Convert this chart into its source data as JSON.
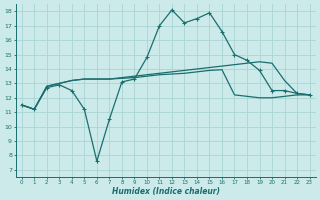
{
  "xlabel": "Humidex (Indice chaleur)",
  "xlim": [
    -0.5,
    23.5
  ],
  "ylim": [
    6.5,
    18.5
  ],
  "xticks": [
    0,
    1,
    2,
    3,
    4,
    5,
    6,
    7,
    8,
    9,
    10,
    11,
    12,
    13,
    14,
    15,
    16,
    17,
    18,
    19,
    20,
    21,
    22,
    23
  ],
  "yticks": [
    7,
    8,
    9,
    10,
    11,
    12,
    13,
    14,
    15,
    16,
    17,
    18
  ],
  "background_color": "#cdeaea",
  "grid_color": "#aad4d4",
  "line_color": "#1a6e6e",
  "line1_y": [
    11.5,
    11.2,
    12.7,
    12.9,
    12.5,
    11.2,
    7.6,
    10.5,
    13.1,
    13.3,
    14.8,
    17.0,
    18.1,
    17.2,
    17.5,
    17.9,
    16.6,
    15.0,
    14.6,
    13.9,
    12.5,
    12.5,
    12.3,
    12.2
  ],
  "line2_y": [
    11.5,
    11.2,
    12.8,
    13.0,
    13.2,
    13.3,
    13.3,
    13.3,
    13.4,
    13.5,
    13.6,
    13.7,
    13.8,
    13.9,
    14.0,
    14.1,
    14.2,
    14.3,
    14.4,
    14.5,
    14.4,
    13.2,
    12.3,
    12.2
  ],
  "line3_y": [
    11.5,
    11.2,
    12.8,
    13.0,
    13.2,
    13.3,
    13.3,
    13.3,
    13.35,
    13.4,
    13.5,
    13.6,
    13.65,
    13.7,
    13.8,
    13.9,
    13.95,
    12.2,
    12.1,
    12.0,
    12.0,
    12.1,
    12.2,
    12.2
  ]
}
